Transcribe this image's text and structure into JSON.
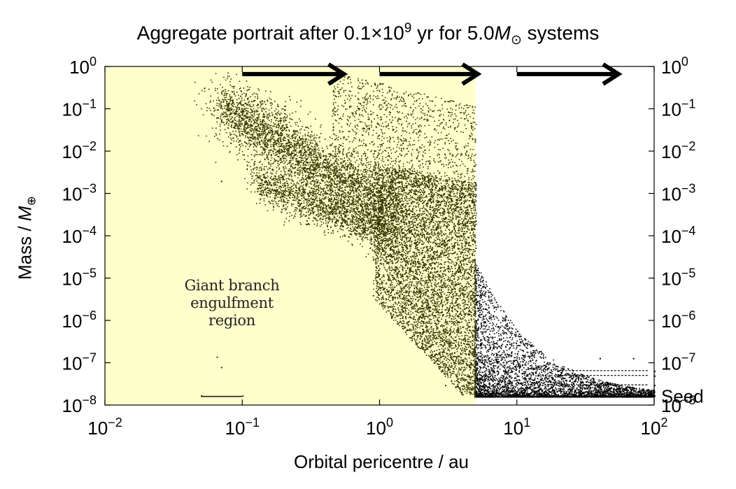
{
  "chart_data": {
    "type": "scatter",
    "title": {
      "prefix": "Aggregate portrait after 0.1×10",
      "exp": "9",
      "middle": " yr for 5.0",
      "mass_symbol": "M",
      "mass_subscript": "⊙",
      "suffix": " systems"
    },
    "xlabel": "Orbital pericentre / au",
    "ylabel": {
      "text": "Mass / ",
      "symbol": "M",
      "subscript": "⊕"
    },
    "x_scale": "log",
    "y_scale": "log",
    "xlim": [
      0.01,
      100
    ],
    "ylim": [
      1e-08,
      1
    ],
    "x_ticks": [
      {
        "value": 0.01,
        "base": "10",
        "exp": "−2"
      },
      {
        "value": 0.1,
        "base": "10",
        "exp": "−1"
      },
      {
        "value": 1,
        "base": "10",
        "exp": "0"
      },
      {
        "value": 10,
        "base": "10",
        "exp": "1"
      },
      {
        "value": 100,
        "base": "10",
        "exp": "2"
      }
    ],
    "y_ticks": [
      {
        "value": 1,
        "base": "10",
        "exp": "0"
      },
      {
        "value": 0.1,
        "base": "10",
        "exp": "−1"
      },
      {
        "value": 0.01,
        "base": "10",
        "exp": "−2"
      },
      {
        "value": 0.001,
        "base": "10",
        "exp": "−3"
      },
      {
        "value": 0.0001,
        "base": "10",
        "exp": "−4"
      },
      {
        "value": 1e-05,
        "base": "10",
        "exp": "−5"
      },
      {
        "value": 1e-06,
        "base": "10",
        "exp": "−6"
      },
      {
        "value": 1e-07,
        "base": "10",
        "exp": "−7"
      },
      {
        "value": 1e-08,
        "base": "10",
        "exp": "−8"
      }
    ],
    "right_axis_extra_label": {
      "value": 1.6e-08,
      "text": "Seed"
    },
    "shaded_region": {
      "label_lines": [
        "Giant branch",
        "engulfment",
        "region"
      ],
      "x_range": [
        0.01,
        5.0
      ],
      "color": "#ffffcc"
    },
    "arrows": [
      {
        "x_start": 0.1,
        "x_end": 0.55,
        "y": 0.66
      },
      {
        "x_start": 1.0,
        "x_end": 5.2,
        "y": 0.66
      },
      {
        "x_start": 10,
        "x_end": 55,
        "y": 0.66
      }
    ],
    "series": [
      {
        "color": "#333300",
        "in_region_color": "#333300",
        "out_region_color": "#000000",
        "points_approx": [
          {
            "x": 0.07,
            "y": 0.12
          },
          {
            "x": 0.1,
            "y": 0.06
          },
          {
            "x": 0.2,
            "y": 0.01
          },
          {
            "x": 0.4,
            "y": 0.0008
          },
          {
            "x": 0.07,
            "y": 0.002
          },
          {
            "x": 0.3,
            "y": 0.0002
          },
          {
            "x": 1.0,
            "y": 5e-05
          },
          {
            "x": 1.5,
            "y": 0.003
          },
          {
            "x": 2.0,
            "y": 1e-06
          },
          {
            "x": 3.0,
            "y": 3e-08
          },
          {
            "x": 5.0,
            "y": 1e-06
          },
          {
            "x": 10,
            "y": 5e-08
          },
          {
            "x": 30,
            "y": 2e-08
          },
          {
            "x": 100,
            "y": 1.7e-08
          }
        ]
      },
      {
        "points_approx": [
          {
            "x": 0.065,
            "y": 1.4e-07
          },
          {
            "x": 0.07,
            "y": 8e-08
          },
          {
            "x": 0.05,
            "y": 1.7e-08
          },
          {
            "x": 0.1,
            "y": 1.7e-08
          }
        ]
      },
      {
        "points_approx": [
          {
            "x": 20,
            "y": 6.5e-08
          },
          {
            "x": 100,
            "y": 6.5e-08
          },
          {
            "x": 20,
            "y": 5e-08
          },
          {
            "x": 100,
            "y": 5e-08
          },
          {
            "x": 30,
            "y": 3e-08
          },
          {
            "x": 100,
            "y": 3e-08
          },
          {
            "x": 40,
            "y": 1.3e-07
          },
          {
            "x": 70,
            "y": 1.3e-07
          }
        ]
      }
    ],
    "grid": false,
    "legend": "none"
  }
}
